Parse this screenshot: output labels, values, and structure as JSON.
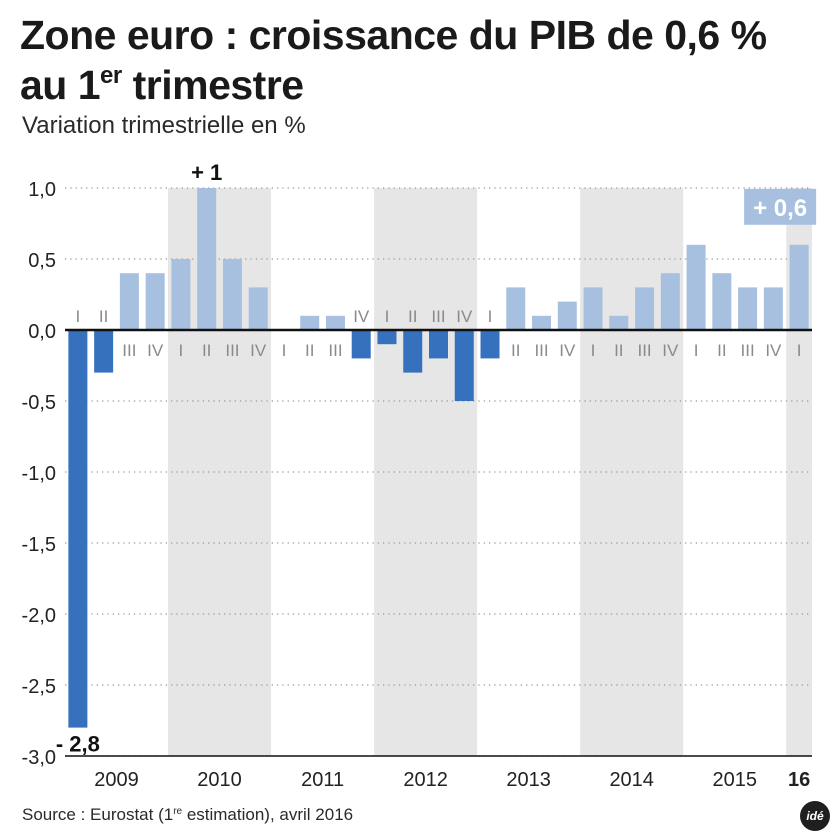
{
  "title": {
    "line1": "Zone euro : croissance du PIB de 0,6 %",
    "line2_prefix": "au 1",
    "line2_sup": "er",
    "line2_suffix": " trimestre"
  },
  "subtitle": "Variation trimestrielle en %",
  "source": {
    "prefix": "Source : Eurostat (1",
    "sup": "re",
    "suffix": " estimation), avril 2016"
  },
  "logo": "idé",
  "chart_data": {
    "type": "bar",
    "ylim": [
      -3.0,
      1.0
    ],
    "yticks": [
      "1,0",
      "0,5",
      "0,0",
      "-0,5",
      "-1,0",
      "-1,5",
      "-2,0",
      "-2,5",
      "-3,0"
    ],
    "ytick_values": [
      1.0,
      0.5,
      0.0,
      -0.5,
      -1.0,
      -1.5,
      -2.0,
      -2.5,
      -3.0
    ],
    "grid": true,
    "years": [
      {
        "label": "2009",
        "shaded": false,
        "bold": false
      },
      {
        "label": "2010",
        "shaded": true,
        "bold": false
      },
      {
        "label": "2011",
        "shaded": false,
        "bold": false
      },
      {
        "label": "2012",
        "shaded": true,
        "bold": false
      },
      {
        "label": "2013",
        "shaded": false,
        "bold": false
      },
      {
        "label": "2014",
        "shaded": true,
        "bold": false
      },
      {
        "label": "2015",
        "shaded": false,
        "bold": false
      },
      {
        "label": "16",
        "shaded": true,
        "bold": true
      }
    ],
    "categories": [
      "I",
      "II",
      "III",
      "IV",
      "I",
      "II",
      "III",
      "IV",
      "I",
      "II",
      "III",
      "IV",
      "I",
      "II",
      "III",
      "IV",
      "I",
      "II",
      "III",
      "IV",
      "I",
      "II",
      "III",
      "IV",
      "I",
      "II",
      "III",
      "IV",
      "I"
    ],
    "values": [
      -2.8,
      -0.3,
      0.4,
      0.4,
      0.5,
      1.0,
      0.5,
      0.3,
      0.0,
      0.1,
      0.1,
      -0.2,
      -0.1,
      -0.3,
      -0.2,
      -0.5,
      -0.2,
      0.3,
      0.1,
      0.2,
      0.3,
      0.1,
      0.3,
      0.4,
      0.6,
      0.4,
      0.3,
      0.3,
      0.6
    ],
    "annotations": [
      {
        "index": 0,
        "text": "- 2,8",
        "style": "plain"
      },
      {
        "index": 5,
        "text": "+ 1",
        "style": "plain"
      },
      {
        "index": 28,
        "text": "+ 0,6",
        "style": "boxed"
      }
    ],
    "colors": {
      "positive": "#a7c0df",
      "negative": "#3671bd",
      "shade": "#e6e6e6",
      "grid": "#9a9a9a",
      "axis": "#111111",
      "label": "#8a8a8a",
      "annotation_box": "#a7c0df"
    }
  }
}
